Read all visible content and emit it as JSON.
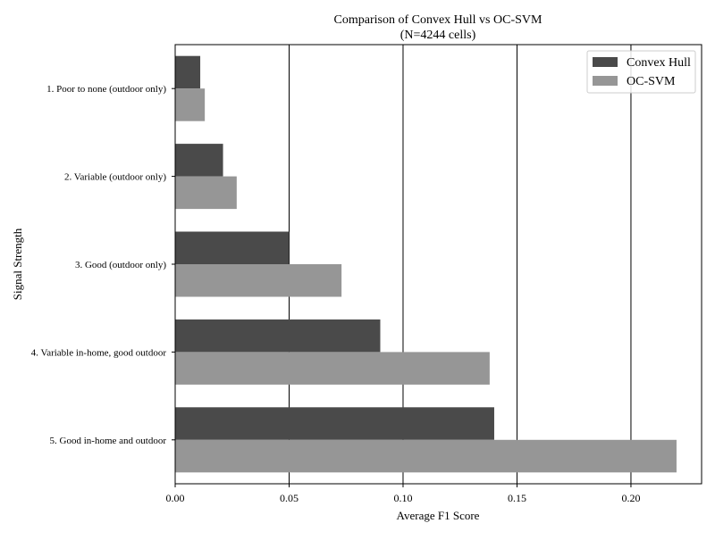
{
  "chart_data": {
    "type": "bar",
    "orientation": "horizontal",
    "title": "Comparison of Convex Hull vs OC-SVM",
    "subtitle": "(N=4244 cells)",
    "xlabel": "Average F1 Score",
    "ylabel": "Signal Strength",
    "categories": [
      "1. Poor to none (outdoor only)",
      "2. Variable (outdoor only)",
      "3. Good (outdoor only)",
      "4. Variable in-home, good outdoor",
      "5. Good in-home and outdoor"
    ],
    "series": [
      {
        "name": "Convex Hull",
        "color": "#4a4a4a",
        "values": [
          0.011,
          0.021,
          0.05,
          0.09,
          0.14
        ]
      },
      {
        "name": "OC-SVM",
        "color": "#969696",
        "values": [
          0.013,
          0.027,
          0.073,
          0.138,
          0.22
        ]
      }
    ],
    "xlim": [
      0.0,
      0.231
    ],
    "xticks": [
      0.0,
      0.05,
      0.1,
      0.15,
      0.2
    ],
    "xtick_labels": [
      "0.00",
      "0.05",
      "0.10",
      "0.15",
      "0.20"
    ],
    "grid": "vertical",
    "legend": "top-right"
  }
}
